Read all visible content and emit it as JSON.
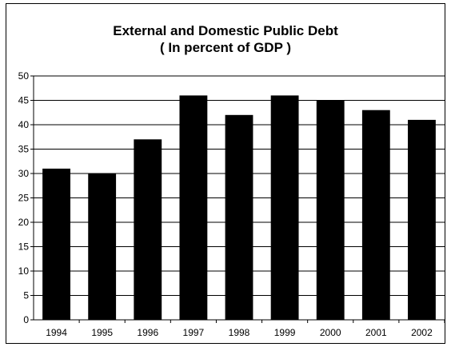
{
  "chart_data": {
    "type": "bar",
    "title": "External and Domestic Public Debt",
    "subtitle": "( In percent of GDP )",
    "categories": [
      "1994",
      "1995",
      "1996",
      "1997",
      "1998",
      "1999",
      "2000",
      "2001",
      "2002"
    ],
    "values": [
      31,
      30,
      37,
      46,
      42,
      46,
      45,
      43,
      41
    ],
    "ylim": [
      0,
      50
    ],
    "yticks": [
      "0",
      "5",
      "10",
      "15",
      "20",
      "25",
      "30",
      "35",
      "40",
      "45",
      "50"
    ],
    "grid": true,
    "legend": "none",
    "bar_color": "#000000",
    "grid_color": "#000000"
  }
}
